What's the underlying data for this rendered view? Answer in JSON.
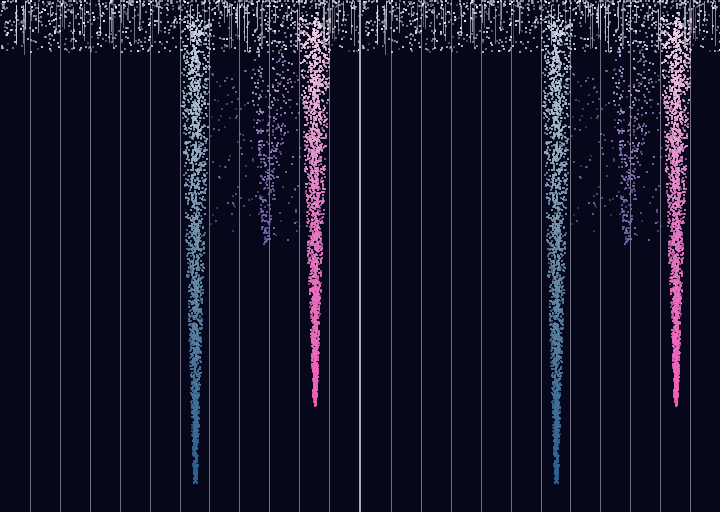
{
  "scene": {
    "background_color": "#06071a",
    "lane_line_color": "#c7c7d3",
    "divider_color": "#c9c9d6",
    "lane_count": 12,
    "streams": [
      {
        "name": "steel-blue-drip",
        "lane": 6,
        "color_top": "#c9d6e6",
        "color_mid": "#6f8fa8",
        "color_bottom": "#2a5f8f",
        "length_ratio": 0.9
      },
      {
        "name": "pink-drip",
        "lane": 10,
        "color_top": "#f0d7ea",
        "color_mid": "#e27cc3",
        "color_bottom": "#ef5fb8",
        "length_ratio": 0.75
      },
      {
        "name": "lavender-drift",
        "lane": 9,
        "color_top": "#cfc4ea",
        "color_mid": "#9d86c7",
        "color_bottom": "#6b5ea8",
        "length_ratio": 0.45
      }
    ]
  }
}
